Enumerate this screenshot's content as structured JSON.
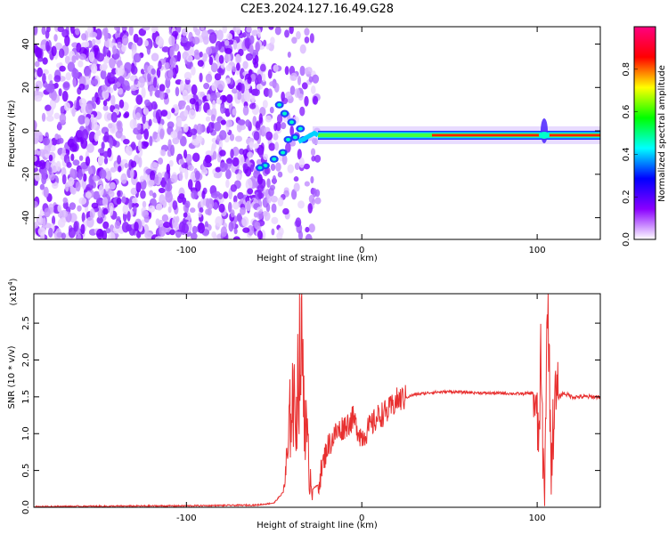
{
  "page_title": "C2E3.2024.127.16.49.G28",
  "chart_data": [
    {
      "type": "heatmap",
      "title": "C2E3.2024.127.16.49.G28",
      "xlabel": "Height of straight line (km)",
      "ylabel": "Frequency (Hz)",
      "xlim": [
        -187,
        136
      ],
      "ylim": [
        -50,
        48
      ],
      "x_ticks": [
        -100,
        0,
        100
      ],
      "x_tick_labels": [
        "-100",
        "0",
        "100"
      ],
      "y_ticks": [
        -40,
        -20,
        0,
        20,
        40
      ],
      "y_tick_labels": [
        "-40",
        "-20",
        "0",
        "20",
        "40"
      ],
      "grid": false,
      "colorbar": {
        "label": "Normalized spectral amplitude",
        "range": [
          0,
          1
        ],
        "ticks": [
          0.0,
          0.2,
          0.4,
          0.6,
          0.8
        ],
        "tick_labels": [
          "0.0",
          "0.2",
          "0.4",
          "0.6",
          "0.8"
        ],
        "colormap": [
          "#ffffff",
          "#8a00ff",
          "#0000ff",
          "#00ffff",
          "#00ff00",
          "#ffff00",
          "#ff0000",
          "#ff0080"
        ]
      },
      "features": {
        "noise_region_x": [
          -187,
          -60
        ],
        "transition_region_x": [
          -60,
          -25
        ],
        "signal_line_x": [
          -25,
          136
        ],
        "signal_frequency": -2,
        "spike_x": 104
      }
    },
    {
      "type": "line",
      "xlabel": "Height of straight line (km)",
      "ylabel": "SNR (10 * v/v)",
      "y_multiplier": "(x10",
      "y_multiplier_exp": "4",
      "y_multiplier_close": ")",
      "xlim": [
        -187,
        136
      ],
      "ylim": [
        0,
        2.9
      ],
      "x_ticks": [
        -100,
        0,
        100
      ],
      "x_tick_labels": [
        "-100",
        "0",
        "100"
      ],
      "y_ticks": [
        0.0,
        0.5,
        1.0,
        1.5,
        2.0,
        2.5
      ],
      "y_tick_labels": [
        "0.0",
        "0.5",
        "1.0",
        "1.5",
        "2.0",
        "2.5"
      ],
      "grid": false,
      "series": [
        {
          "color": "#e83030",
          "x": [
            -187,
            -100,
            -60,
            -50,
            -45,
            -42,
            -40,
            -38,
            -36,
            -34,
            -32,
            -30,
            -28,
            -25,
            -20,
            -15,
            -10,
            -5,
            0,
            5,
            10,
            15,
            20,
            30,
            40,
            50,
            60,
            70,
            80,
            90,
            98,
            101,
            102,
            104,
            106,
            108,
            110,
            115,
            120,
            130,
            136
          ],
          "y": [
            0.01,
            0.02,
            0.03,
            0.06,
            0.2,
            0.7,
            1.6,
            1.2,
            1.9,
            2.2,
            1.1,
            0.5,
            0.25,
            0.3,
            0.8,
            1.0,
            1.1,
            1.2,
            0.95,
            1.1,
            1.25,
            1.3,
            1.45,
            1.53,
            1.56,
            1.57,
            1.56,
            1.55,
            1.55,
            1.54,
            1.55,
            0.9,
            2.0,
            0.1,
            2.9,
            0.6,
            1.45,
            1.55,
            1.5,
            1.5,
            1.5
          ]
        }
      ]
    }
  ]
}
